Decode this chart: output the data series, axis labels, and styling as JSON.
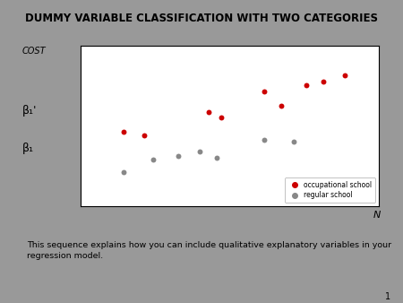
{
  "title": "DUMMY VARIABLE CLASSIFICATION WITH TWO CATEGORIES",
  "background_color": "#999999",
  "title_bg_color": "#d4d4d4",
  "plot_bg_color": "#ffffff",
  "text_box_bg_color": "#ffffff",
  "ylabel": "COST",
  "xlabel": "N",
  "beta1_label": "β₁",
  "beta1_prime_label": "β₁'",
  "occ_x": [
    3.5,
    4.0,
    5.5,
    5.8,
    6.8,
    7.2,
    7.8,
    8.2,
    8.7
  ],
  "occ_y": [
    5.2,
    5.0,
    6.2,
    5.9,
    7.2,
    6.5,
    7.5,
    7.7,
    8.0
  ],
  "reg_x": [
    3.5,
    4.2,
    4.8,
    5.3,
    5.7,
    6.8,
    7.5
  ],
  "reg_y": [
    3.2,
    3.8,
    4.0,
    4.2,
    3.9,
    4.8,
    4.7
  ],
  "occ_color": "#cc0000",
  "reg_color": "#888888",
  "legend_occ": "occupational school",
  "legend_reg": "regular school",
  "caption": "This sequence explains how you can include qualitative explanatory variables in your\nregression model.",
  "page_num": "1",
  "xlim": [
    2.5,
    9.5
  ],
  "ylim": [
    1.5,
    9.5
  ]
}
